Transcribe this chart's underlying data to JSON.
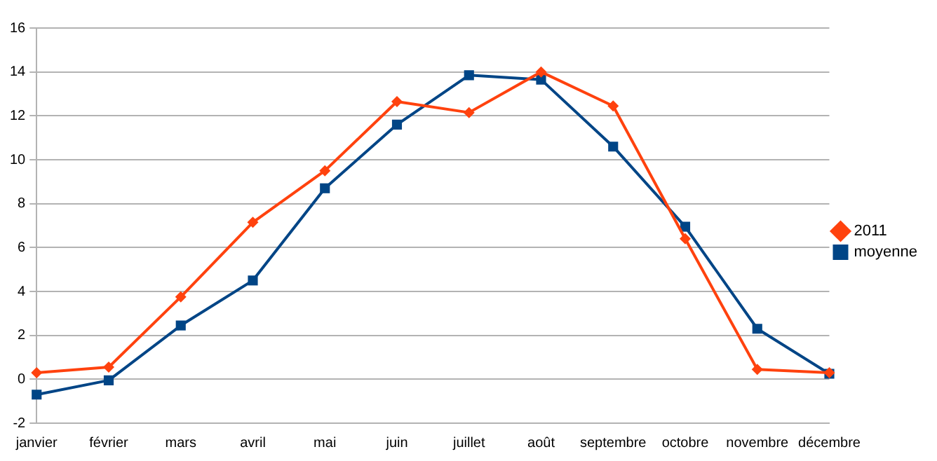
{
  "chart_data": {
    "type": "line",
    "categories": [
      "janvier",
      "février",
      "mars",
      "avril",
      "mai",
      "juin",
      "juillet",
      "août",
      "septembre",
      "octobre",
      "novembre",
      "décembre"
    ],
    "series": [
      {
        "name": "moyenne",
        "color": "#004586",
        "marker": "square",
        "values": [
          -0.7,
          -0.05,
          2.45,
          4.5,
          8.7,
          11.6,
          13.85,
          13.65,
          10.6,
          6.95,
          2.3,
          0.25
        ]
      },
      {
        "name": "2011",
        "color": "#ff420e",
        "marker": "diamond",
        "values": [
          0.3,
          0.55,
          3.75,
          7.15,
          9.5,
          12.65,
          12.15,
          14.0,
          12.45,
          6.4,
          0.45,
          0.3
        ]
      }
    ],
    "ylim": [
      -2,
      16
    ],
    "yticks": [
      -2,
      0,
      2,
      4,
      6,
      8,
      10,
      12,
      14,
      16
    ],
    "grid": "y",
    "legend": "right"
  }
}
